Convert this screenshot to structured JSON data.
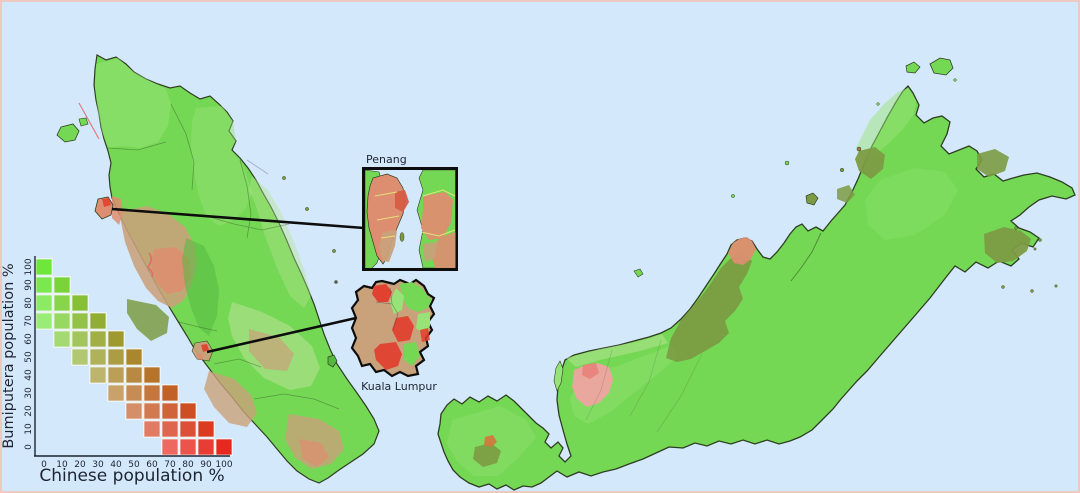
{
  "palette": {
    "sea": "#d4e8fb",
    "land": "#75d854",
    "land_light": "#97e377",
    "land_pale": "#b4e392",
    "land_dark": "#53b93f",
    "olive": "#7c9b43",
    "olive_dark": "#6b8c39",
    "tan": "#c9a17b",
    "brown": "#aa7f4e",
    "salmon": "#dd8e70",
    "salmon_light": "#efa3a0",
    "pink_red": "#e8837a",
    "red": "#e23c2c",
    "red_dark": "#d65c44",
    "orange": "#cf7a3e",
    "coast": "#2e3d22",
    "connector": "#0d0d0d",
    "ink": "#1d2433",
    "yellow": "#e9e97d",
    "gray_line": "#9aa3b8",
    "red_line": "#e06a6a",
    "frame": "#eccac2",
    "cell_border": "#f4f7f4",
    "detail_line": "#454545"
  },
  "insets": {
    "penang": {
      "label": "Penang"
    },
    "kuala_lumpur": {
      "label": "Kuala Lumpur"
    }
  },
  "legend": {
    "x_axis_label": "Chinese population %",
    "y_axis_label": "Bumiputera population %",
    "x_ticks": [
      0,
      10,
      20,
      30,
      40,
      50,
      60,
      70,
      80,
      90,
      100
    ],
    "y_ticks": [
      0,
      10,
      20,
      30,
      40,
      50,
      60,
      70,
      80,
      90,
      100
    ],
    "cells": [
      {
        "chinese": 0,
        "bumiputera": 100,
        "color": "#6ee63c"
      },
      {
        "chinese": 10,
        "bumiputera": 90,
        "color": "#7ad339"
      },
      {
        "chinese": 20,
        "bumiputera": 80,
        "color": "#86c036"
      },
      {
        "chinese": 30,
        "bumiputera": 70,
        "color": "#92ad33"
      },
      {
        "chinese": 40,
        "bumiputera": 60,
        "color": "#9e9a30"
      },
      {
        "chinese": 50,
        "bumiputera": 50,
        "color": "#aa872d"
      },
      {
        "chinese": 60,
        "bumiputera": 40,
        "color": "#b6742a"
      },
      {
        "chinese": 70,
        "bumiputera": 30,
        "color": "#c26127"
      },
      {
        "chinese": 80,
        "bumiputera": 20,
        "color": "#ce4e24"
      },
      {
        "chinese": 90,
        "bumiputera": 10,
        "color": "#da3b21"
      },
      {
        "chinese": 100,
        "bumiputera": 0,
        "color": "#e6281e"
      },
      {
        "chinese": 0,
        "bumiputera": 90,
        "color": "#7ce84f"
      },
      {
        "chinese": 10,
        "bumiputera": 80,
        "color": "#88d54c"
      },
      {
        "chinese": 20,
        "bumiputera": 70,
        "color": "#94c249"
      },
      {
        "chinese": 30,
        "bumiputera": 60,
        "color": "#a0af46"
      },
      {
        "chinese": 40,
        "bumiputera": 50,
        "color": "#ac9c43"
      },
      {
        "chinese": 50,
        "bumiputera": 40,
        "color": "#b88940"
      },
      {
        "chinese": 60,
        "bumiputera": 30,
        "color": "#c4763d"
      },
      {
        "chinese": 70,
        "bumiputera": 20,
        "color": "#d0633a"
      },
      {
        "chinese": 80,
        "bumiputera": 10,
        "color": "#dc5037"
      },
      {
        "chinese": 90,
        "bumiputera": 0,
        "color": "#e83d34"
      },
      {
        "chinese": 0,
        "bumiputera": 80,
        "color": "#8beb63"
      },
      {
        "chinese": 10,
        "bumiputera": 70,
        "color": "#97d860"
      },
      {
        "chinese": 20,
        "bumiputera": 60,
        "color": "#a3c55d"
      },
      {
        "chinese": 30,
        "bumiputera": 50,
        "color": "#afb25a"
      },
      {
        "chinese": 40,
        "bumiputera": 40,
        "color": "#bb9f57"
      },
      {
        "chinese": 50,
        "bumiputera": 30,
        "color": "#c78c54"
      },
      {
        "chinese": 60,
        "bumiputera": 20,
        "color": "#d37951"
      },
      {
        "chinese": 70,
        "bumiputera": 10,
        "color": "#df664e"
      },
      {
        "chinese": 80,
        "bumiputera": 0,
        "color": "#eb534b"
      },
      {
        "chinese": 0,
        "bumiputera": 70,
        "color": "#99ed76"
      },
      {
        "chinese": 10,
        "bumiputera": 60,
        "color": "#a5da73"
      },
      {
        "chinese": 20,
        "bumiputera": 50,
        "color": "#b1c770"
      },
      {
        "chinese": 30,
        "bumiputera": 40,
        "color": "#bdb46d"
      },
      {
        "chinese": 40,
        "bumiputera": 30,
        "color": "#c9a16a"
      },
      {
        "chinese": 50,
        "bumiputera": 20,
        "color": "#d58e67"
      },
      {
        "chinese": 60,
        "bumiputera": 10,
        "color": "#e17b64"
      },
      {
        "chinese": 70,
        "bumiputera": 0,
        "color": "#ed6861"
      }
    ]
  }
}
